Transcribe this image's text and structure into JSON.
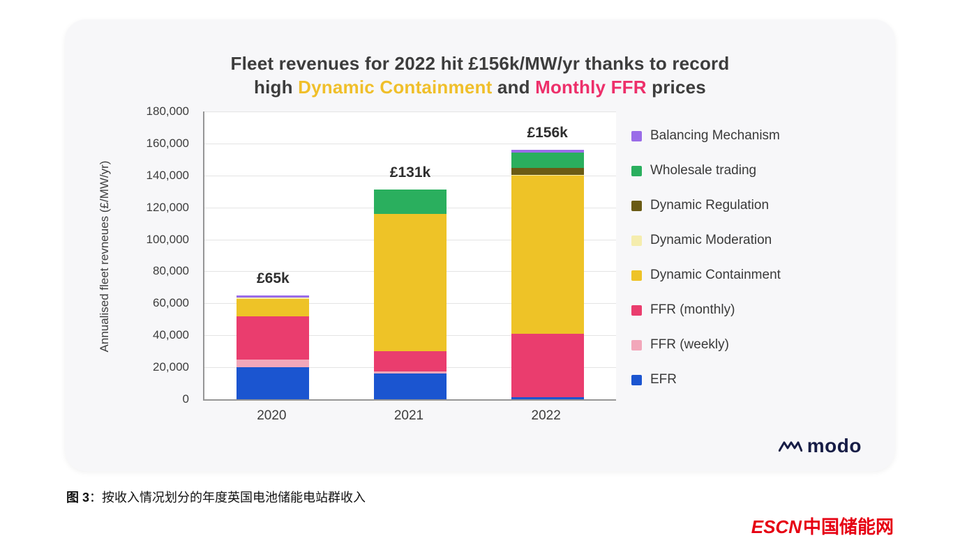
{
  "page": {
    "caption_bold": "图 3",
    "caption_rest": "：按收入情况划分的年度英国电池储能电站群收入",
    "watermark_en": "ESCN",
    "watermark_cn": "中国储能网",
    "watermark_color": "#e60012"
  },
  "card": {
    "title": {
      "line1": "Fleet revenues for 2022 hit £156k/MW/yr thanks to record",
      "line2_pre": "high ",
      "line2_dc": "Dynamic Containment",
      "line2_and": " and ",
      "line2_ffr": "Monthly FFR",
      "line2_post": " prices",
      "dc_color": "#f0bf2a",
      "ffr_color": "#ed2f6a"
    },
    "logo_text": "modo"
  },
  "chart_data": {
    "type": "bar",
    "stacked": true,
    "title": "Fleet revenues for 2022 hit £156k/MW/yr thanks to record high Dynamic Containment and Monthly FFR prices",
    "ylabel": "Annualised fleet revneues (£/MW/yr)",
    "xlabel": "",
    "categories": [
      "2020",
      "2021",
      "2022"
    ],
    "ylim": [
      0,
      180000
    ],
    "ytick_step": 20000,
    "yticks": [
      "180,000",
      "160,000",
      "140,000",
      "120,000",
      "100,000",
      "80,000",
      "60,000",
      "40,000",
      "20,000",
      "0"
    ],
    "totals": [
      "£65k",
      "£131k",
      "£156k"
    ],
    "grid": true,
    "legend_position": "right",
    "series": [
      {
        "name": "EFR",
        "color": "#1b55d0",
        "values": [
          20000,
          16000,
          1500
        ]
      },
      {
        "name": "FFR (weekly)",
        "color": "#f2a7ba",
        "values": [
          5000,
          1500,
          0
        ]
      },
      {
        "name": "FFR (monthly)",
        "color": "#ea3d6e",
        "values": [
          27000,
          12500,
          39500
        ]
      },
      {
        "name": "Dynamic Containment",
        "color": "#eec327",
        "values": [
          10700,
          86000,
          99000
        ]
      },
      {
        "name": "Dynamic Moderation",
        "color": "#f5edae",
        "values": [
          800,
          0,
          500
        ]
      },
      {
        "name": "Dynamic Regulation",
        "color": "#6a5b15",
        "values": [
          0,
          0,
          4000
        ]
      },
      {
        "name": "Wholesale trading",
        "color": "#2aaf5e",
        "values": [
          0,
          15000,
          10000
        ]
      },
      {
        "name": "Balancing Mechanism",
        "color": "#9a6ce8",
        "values": [
          1500,
          0,
          1500
        ]
      }
    ],
    "legend_order": [
      "Balancing Mechanism",
      "Wholesale trading",
      "Dynamic Regulation",
      "Dynamic Moderation",
      "Dynamic Containment",
      "FFR (monthly)",
      "FFR (weekly)",
      "EFR"
    ]
  }
}
